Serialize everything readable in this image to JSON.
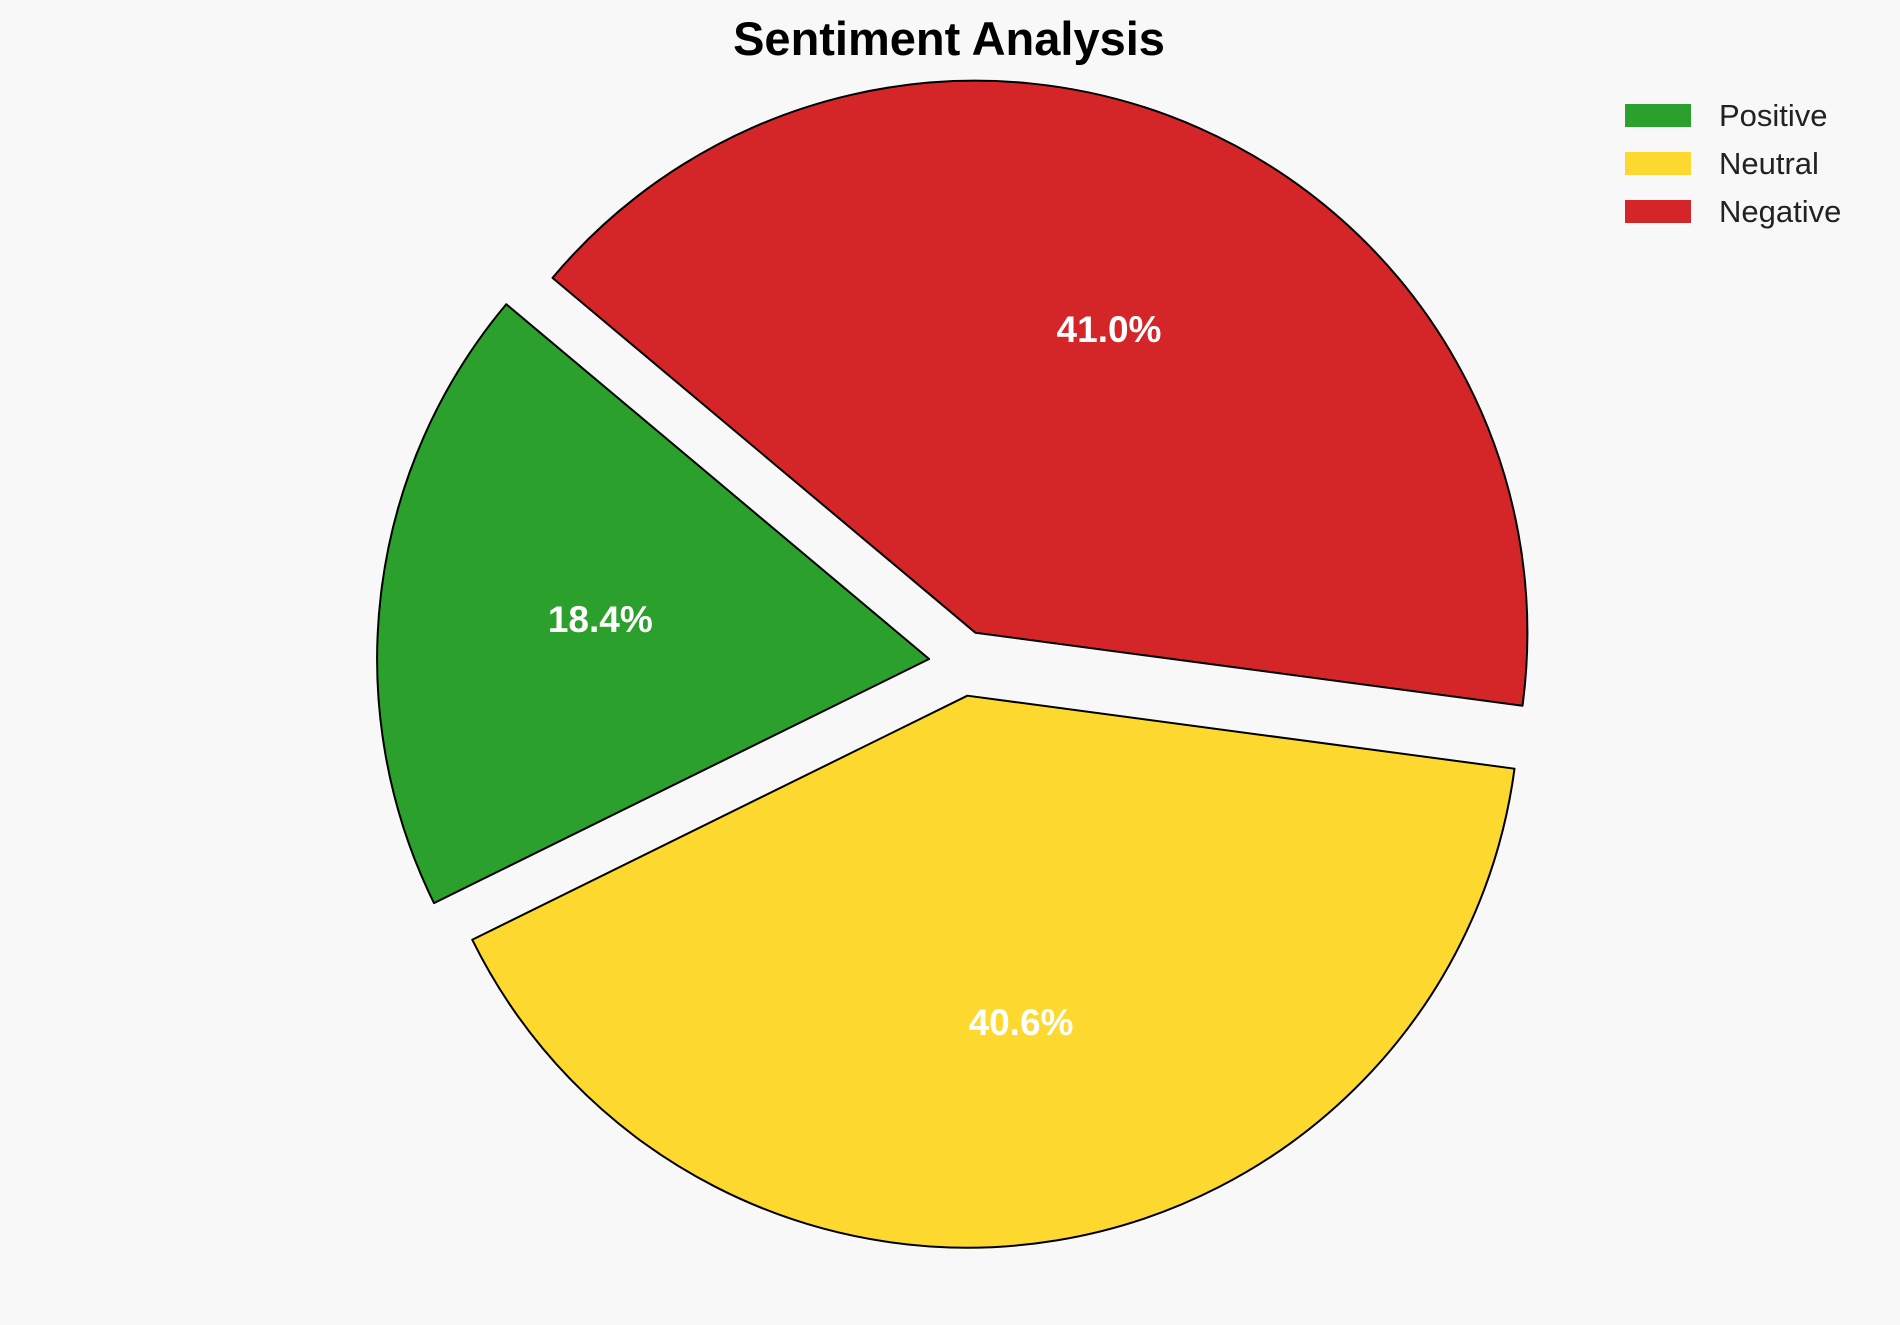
{
  "chart_data": {
    "type": "pie",
    "title": "Sentiment Analysis",
    "categories": [
      "Positive",
      "Neutral",
      "Negative"
    ],
    "values": [
      18.4,
      40.6,
      41.0
    ],
    "labels": [
      "18.4%",
      "40.6%",
      "41.0%"
    ],
    "colors": [
      "#2ca02c",
      "#fdd930",
      "#d42628"
    ],
    "exploded": true,
    "legend_position": "top-right",
    "start_angle_deg": 140,
    "direction": "counterclockwise"
  }
}
